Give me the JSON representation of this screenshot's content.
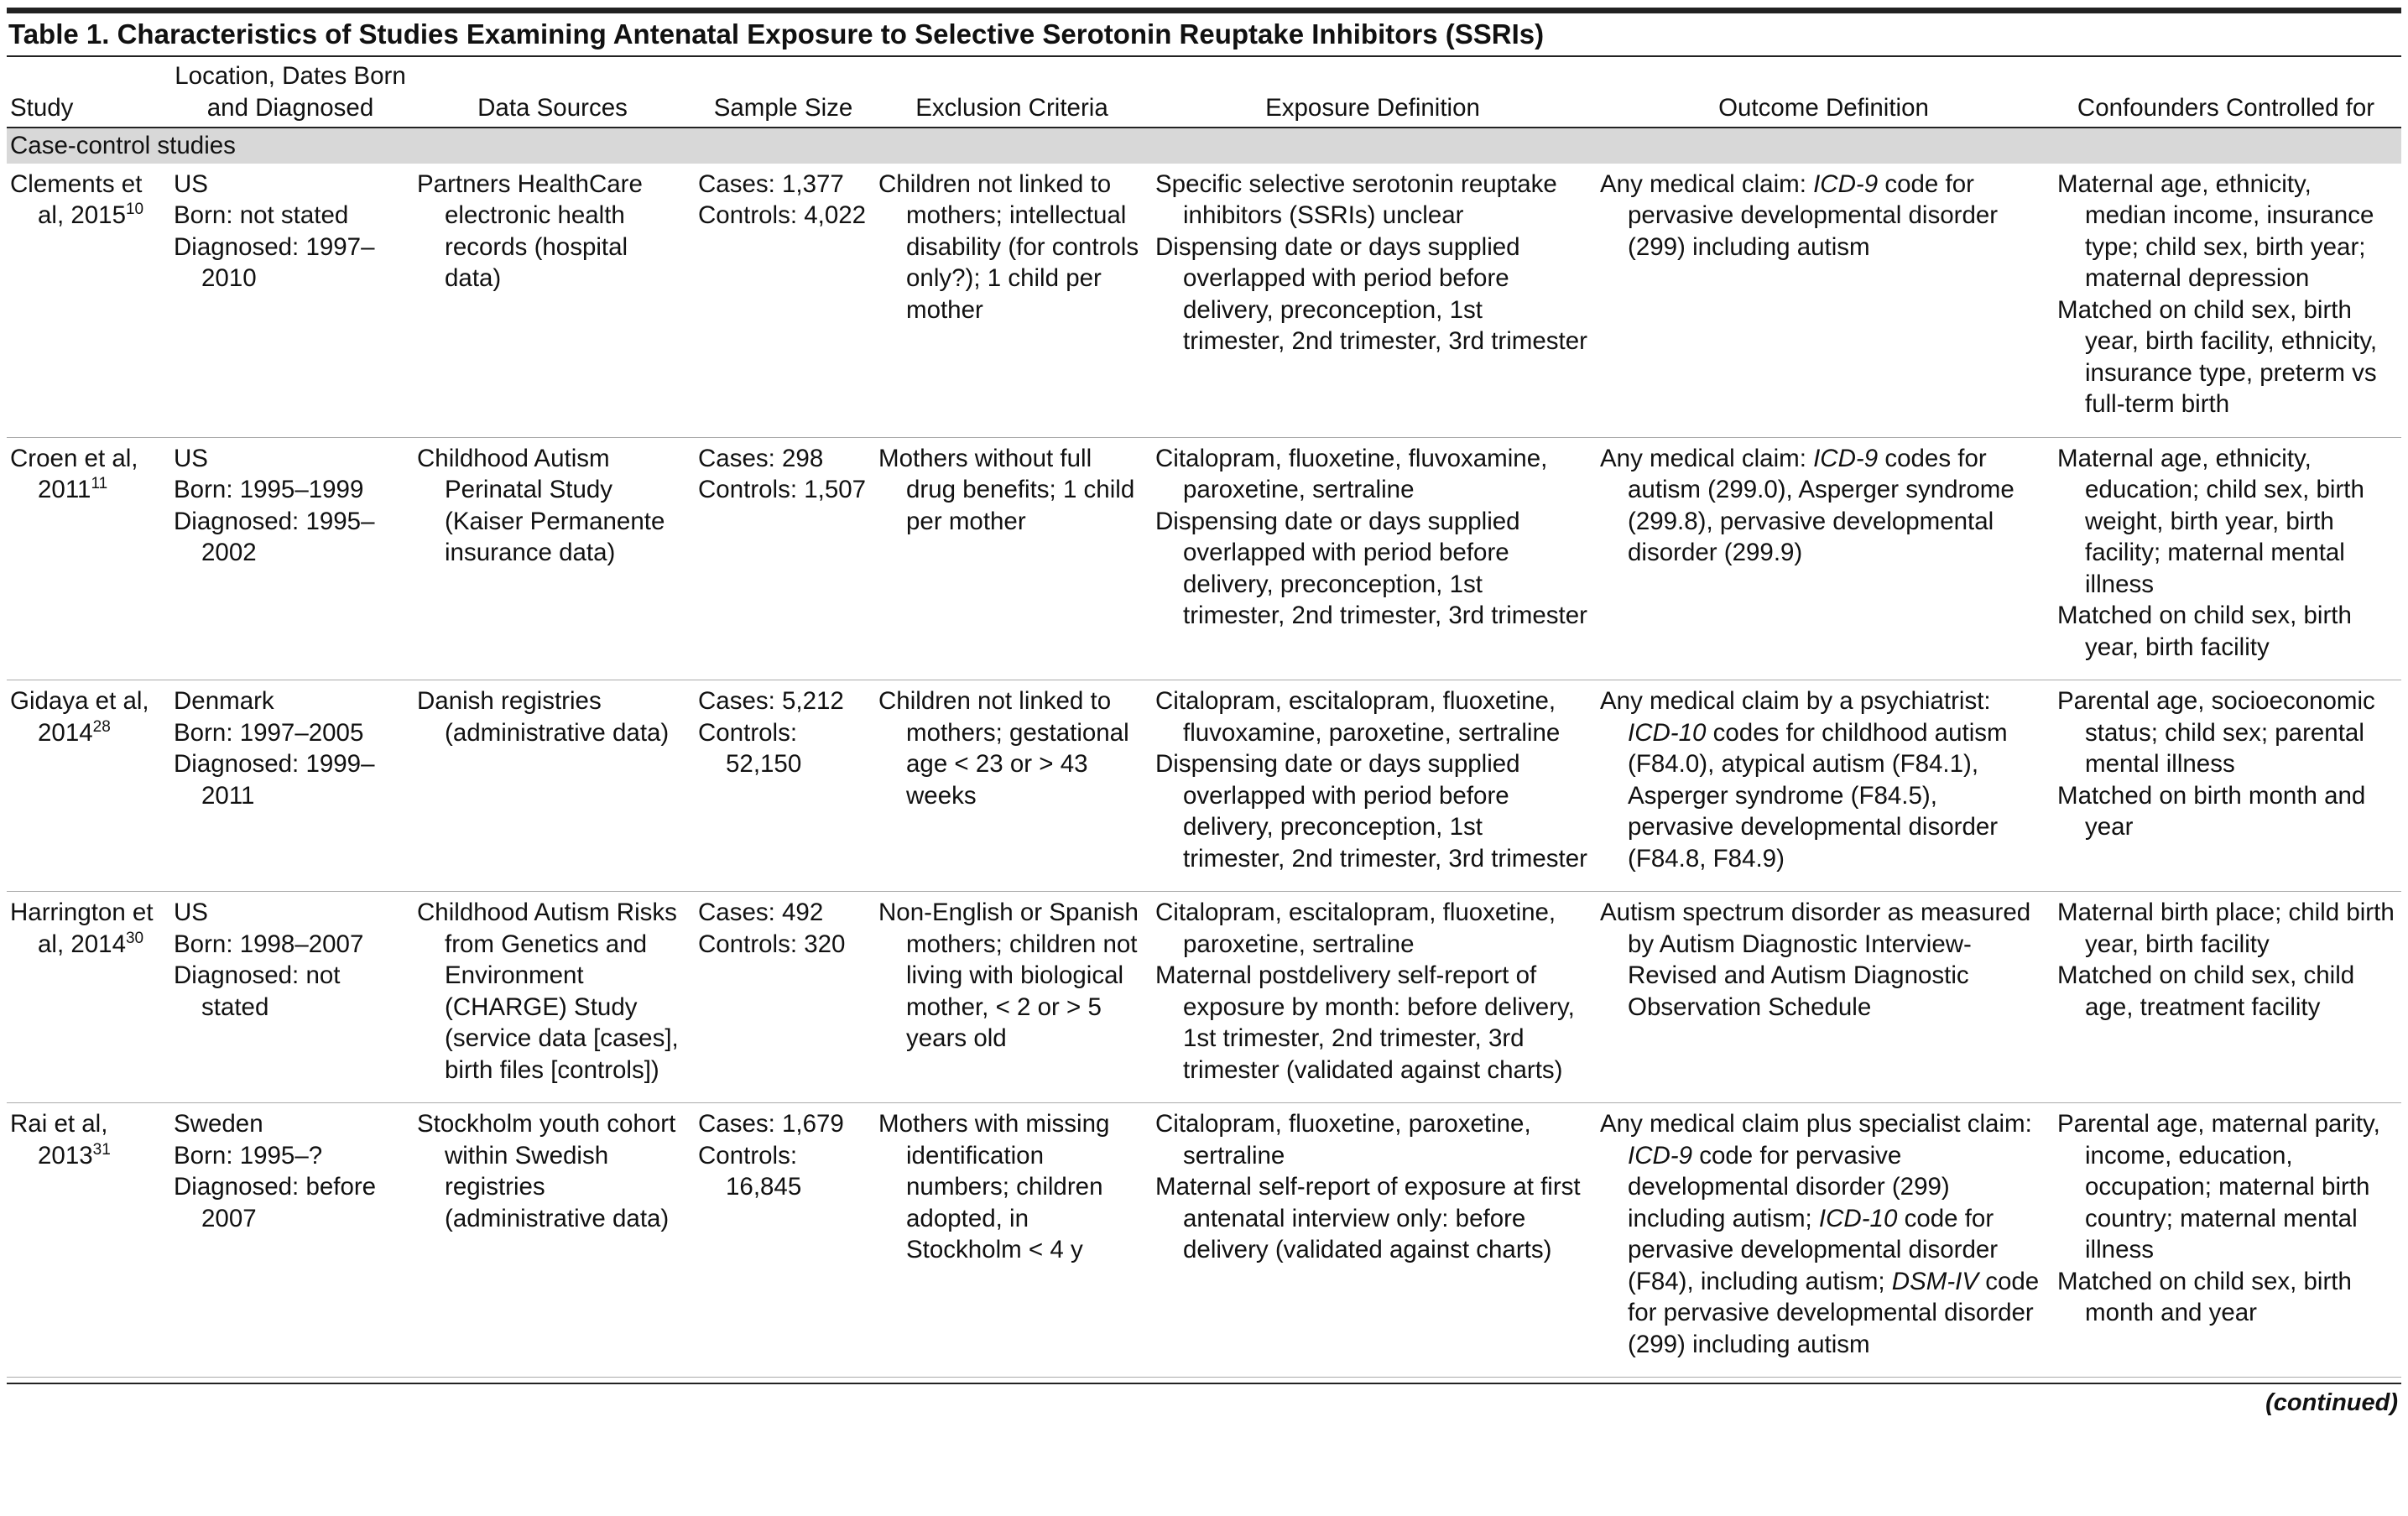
{
  "title": "Table 1. Characteristics of Studies Examining Antenatal Exposure to Selective Serotonin Reuptake Inhibitors (SSRIs)",
  "columns": [
    "Study",
    "Location, Dates Born and Diagnosed",
    "Data Sources",
    "Sample Size",
    "Exclusion Criteria",
    "Exposure Definition",
    "Outcome Definition",
    "Confounders Controlled for"
  ],
  "section": "Case-control studies",
  "rows": [
    {
      "study": {
        "name": "Clements et al, 2015",
        "ref": "10"
      },
      "cells": [
        [
          "US",
          "Born: not stated",
          "Diagnosed: 1997–2010"
        ],
        [
          "Partners HealthCare electronic health records (hospital data)"
        ],
        [
          "Cases: 1,377",
          "Controls: 4,022"
        ],
        [
          "Children not linked to mothers; intellectual disability (for controls only?); 1 child per mother"
        ],
        [
          "Specific selective serotonin reuptake inhibitors (SSRIs) unclear",
          "Dispensing date or days supplied overlapped with period before delivery, preconception, 1st trimester, 2nd trimester, 3rd trimester"
        ],
        [
          [
            "Any medical claim: ",
            {
              "italic": "ICD-9"
            },
            " code for pervasive developmental disorder (299) including autism"
          ]
        ],
        [
          "Maternal age, ethnicity, median income, insurance type; child sex, birth year; maternal depression",
          "Matched on child sex, birth year, birth facility, ethnicity, insurance type, preterm vs full-term birth"
        ]
      ]
    },
    {
      "study": {
        "name": "Croen et al, 2011",
        "ref": "11"
      },
      "cells": [
        [
          "US",
          "Born: 1995–1999",
          "Diagnosed: 1995–2002"
        ],
        [
          "Childhood Autism Perinatal Study (Kaiser Permanente insurance data)"
        ],
        [
          "Cases: 298",
          "Controls: 1,507"
        ],
        [
          "Mothers without full drug benefits; 1 child per mother"
        ],
        [
          "Citalopram, fluoxetine, fluvoxamine, paroxetine, sertraline",
          "Dispensing date or days supplied overlapped with period before delivery, preconception, 1st trimester, 2nd trimester, 3rd trimester"
        ],
        [
          [
            "Any medical claim: ",
            {
              "italic": "ICD-9"
            },
            " codes for autism (299.0), Asperger syndrome (299.8), pervasive developmental disorder (299.9)"
          ]
        ],
        [
          "Maternal age, ethnicity, education; child sex, birth weight, birth year, birth facility; maternal mental illness",
          "Matched on child sex, birth year, birth facility"
        ]
      ]
    },
    {
      "study": {
        "name": "Gidaya et al, 2014",
        "ref": "28"
      },
      "cells": [
        [
          "Denmark",
          "Born: 1997–2005",
          "Diagnosed: 1999–2011"
        ],
        [
          "Danish registries (administrative data)"
        ],
        [
          "Cases: 5,212",
          "Controls: 52,150"
        ],
        [
          "Children not linked to mothers; gestational age < 23 or > 43 weeks"
        ],
        [
          "Citalopram, escitalopram, fluoxetine, fluvoxamine, paroxetine, sertraline",
          "Dispensing date or days supplied overlapped with period before delivery, preconception, 1st trimester, 2nd trimester, 3rd trimester"
        ],
        [
          [
            "Any medical claim by a psychiatrist: ",
            {
              "italic": "ICD-10"
            },
            " codes for childhood autism (F84.0), atypical autism (F84.1), Asperger syndrome (F84.5), pervasive developmental disorder (F84.8, F84.9)"
          ]
        ],
        [
          "Parental age, socioeconomic status; child sex; parental mental illness",
          "Matched on birth month and year"
        ]
      ]
    },
    {
      "study": {
        "name": "Harrington et al, 2014",
        "ref": "30"
      },
      "cells": [
        [
          "US",
          "Born: 1998–2007",
          "Diagnosed: not stated"
        ],
        [
          "Childhood Autism Risks from Genetics and Environment (CHARGE) Study (service data [cases], birth files [controls])"
        ],
        [
          "Cases: 492",
          "Controls: 320"
        ],
        [
          "Non-English or Spanish mothers; children not living with biological mother, < 2 or > 5 years old"
        ],
        [
          "Citalopram, escitalopram, fluoxetine, paroxetine, sertraline",
          "Maternal postdelivery self-report of exposure by month: before delivery, 1st trimester, 2nd trimester, 3rd trimester (validated against charts)"
        ],
        [
          "Autism spectrum disorder as measured by Autism Diagnostic Interview-Revised and Autism Diagnostic Observation Schedule"
        ],
        [
          "Maternal birth place; child birth year, birth facility",
          "Matched on child sex, child age, treatment facility"
        ]
      ]
    },
    {
      "study": {
        "name": "Rai et al, 2013",
        "ref": "31"
      },
      "cells": [
        [
          "Sweden",
          "Born: 1995–?",
          "Diagnosed: before 2007"
        ],
        [
          "Stockholm youth cohort within Swedish registries (administrative data)"
        ],
        [
          "Cases: 1,679",
          "Controls: 16,845"
        ],
        [
          "Mothers with missing identification numbers; children adopted, in Stockholm < 4 y"
        ],
        [
          "Citalopram, fluoxetine, paroxetine, sertraline",
          "Maternal self-report of exposure at first antenatal interview only: before delivery (validated against charts)"
        ],
        [
          [
            "Any medical claim plus specialist claim: ",
            {
              "italic": "ICD-9"
            },
            " code for pervasive developmental disorder (299) including autism; ",
            {
              "italic": "ICD-10"
            },
            " code for pervasive developmental disorder (F84), including autism; ",
            {
              "italic": "DSM-IV"
            },
            " code for pervasive developmental disorder (299) including autism"
          ]
        ],
        [
          "Parental age, maternal parity, income, education, occupation; maternal birth country; maternal mental illness",
          "Matched on child sex, birth month and year"
        ]
      ]
    }
  ],
  "footer": "(continued)"
}
